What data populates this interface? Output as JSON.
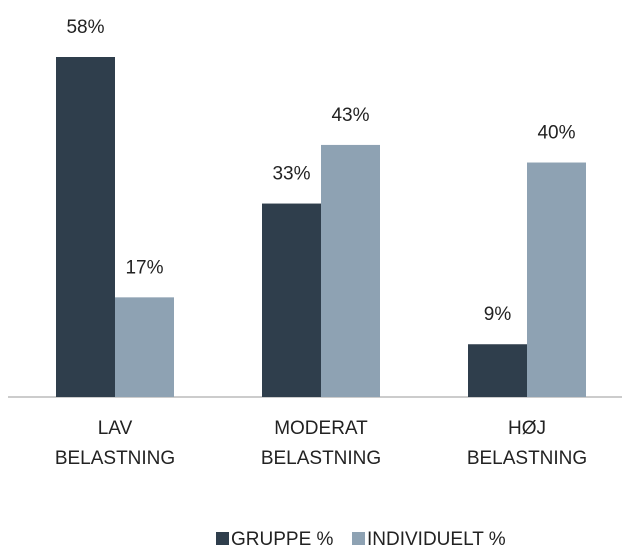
{
  "chart_data": {
    "type": "bar",
    "categories": [
      "LAV BELASTNING",
      "MODERAT BELASTNING",
      "HØJ BELASTNING"
    ],
    "series": [
      {
        "name": "GRUPPE %",
        "color": "#2f3e4c",
        "values": [
          58,
          33,
          9
        ],
        "value_labels": [
          "58%",
          "33%",
          "9%"
        ]
      },
      {
        "name": "INDIVIDUELT %",
        "color": "#8ea2b3",
        "values": [
          17,
          43,
          40
        ],
        "value_labels": [
          "17%",
          "43%",
          "40%"
        ]
      }
    ],
    "legend": "bottom"
  }
}
